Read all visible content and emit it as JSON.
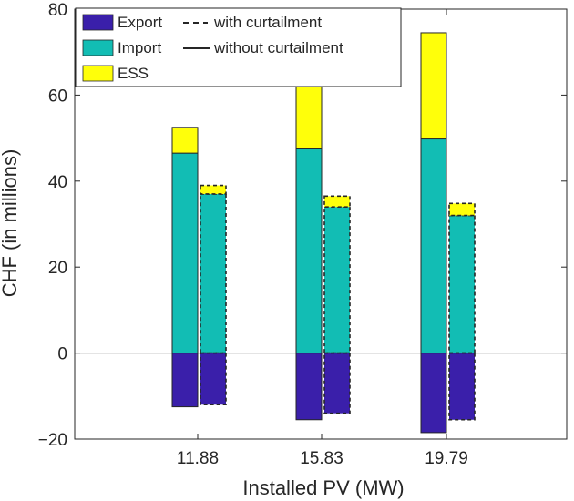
{
  "chart_data": {
    "type": "bar",
    "title": "",
    "xlabel": "Installed PV (MW)",
    "ylabel": "CHF (in millions)",
    "categories": [
      "11.88",
      "15.83",
      "19.79"
    ],
    "ylim": [
      -20,
      80
    ],
    "yticks": [
      -20,
      0,
      20,
      40,
      60,
      80
    ],
    "ytick_labels": [
      "−20",
      "0",
      "20",
      "40",
      "60",
      "80"
    ],
    "grid": false,
    "legend_position": "top-left",
    "colors": {
      "Export": "#3a1faa",
      "Import": "#12bdb4",
      "ESS": "#ffff0a"
    },
    "legend": {
      "components": [
        "Export",
        "Import",
        "ESS"
      ],
      "line_styles": [
        {
          "style": "dashed",
          "label": "with curtailment"
        },
        {
          "style": "solid",
          "label": "without curtailment"
        }
      ]
    },
    "series": [
      {
        "name": "without curtailment",
        "line_style": "solid",
        "Export": [
          -12.5,
          -15.5,
          -18.5
        ],
        "Import": [
          46.5,
          47.5,
          49.8
        ],
        "ESS": [
          6.0,
          14.8,
          24.7
        ]
      },
      {
        "name": "with curtailment",
        "line_style": "dashed",
        "Export": [
          -12.0,
          -14.0,
          -15.5
        ],
        "Import": [
          37.0,
          34.0,
          32.0
        ],
        "ESS": [
          2.0,
          2.5,
          2.8
        ]
      }
    ]
  }
}
